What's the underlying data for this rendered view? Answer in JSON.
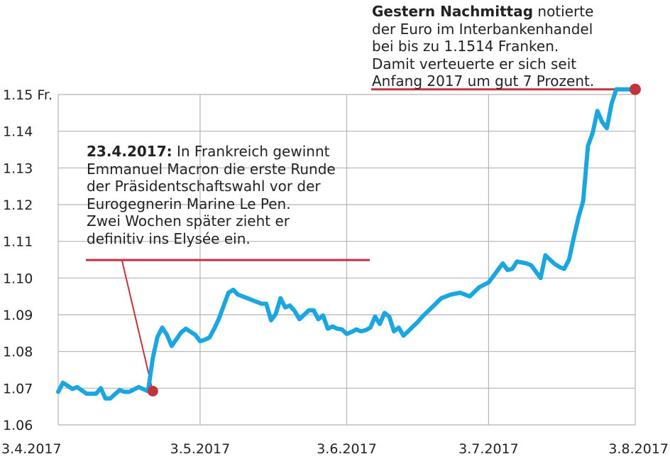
{
  "chart_data": {
    "type": "line",
    "x_ticks": [
      "3.4.2017",
      "3.5.2017",
      "3.6.2017",
      "3.7.2017",
      "3.8.2017"
    ],
    "y_ticks": [
      "1.06",
      "1.07",
      "1.08",
      "1.09",
      "1.10",
      "1.11",
      "1.12",
      "1.13",
      "1.14",
      "1.15 Fr."
    ],
    "ylim": [
      1.06,
      1.15
    ],
    "xlim": [
      "3.4.2017",
      "3.8.2017"
    ],
    "grid": true,
    "series_color": "#1ca6e0",
    "annotation_color": "#c4323b",
    "series": [
      {
        "x": [
          "3.4.2017",
          "4.4.2017",
          "6.4.2017",
          "7.4.2017",
          "9.4.2017",
          "11.4.2017",
          "12.4.2017",
          "13.4.2017",
          "14.4.2017",
          "16.4.2017",
          "17.4.2017",
          "18.4.2017",
          "20.4.2017",
          "22.4.2017",
          "23.4.2017",
          "24.4.2017",
          "25.4.2017",
          "26.4.2017",
          "27.4.2017",
          "29.4.2017",
          "30.4.2017",
          "2.5.2017",
          "3.5.2017",
          "4.5.2017",
          "5.5.2017",
          "6.5.2017",
          "7.5.2017",
          "8.5.2017",
          "9.5.2017",
          "10.5.2017",
          "11.5.2017",
          "13.5.2017",
          "14.5.2017",
          "16.5.2017",
          "17.5.2017",
          "18.5.2017",
          "19.5.2017",
          "20.5.2017",
          "21.5.2017",
          "22.5.2017",
          "23.5.2017",
          "24.5.2017",
          "26.5.2017",
          "27.5.2017",
          "28.5.2017",
          "29.5.2017",
          "30.5.2017",
          "31.5.2017",
          "1.6.2017",
          "2.6.2017",
          "3.6.2017",
          "4.6.2017",
          "5.6.2017",
          "6.6.2017",
          "7.6.2017",
          "8.6.2017",
          "9.6.2017",
          "10.6.2017",
          "11.6.2017",
          "12.6.2017",
          "13.6.2017",
          "14.6.2017",
          "15.6.2017",
          "16.6.2017",
          "17.6.2017",
          "18.6.2017",
          "19.6.2017",
          "21.6.2017",
          "23.6.2017",
          "25.6.2017",
          "27.6.2017",
          "29.6.2017",
          "1.7.2017",
          "3.7.2017",
          "4.7.2017",
          "6.7.2017",
          "7.7.2017",
          "8.7.2017",
          "9.7.2017",
          "11.7.2017",
          "12.7.2017",
          "14.7.2017",
          "15.7.2017",
          "16.7.2017",
          "17.7.2017",
          "18.7.2017",
          "19.7.2017",
          "20.7.2017",
          "21.7.2017",
          "22.7.2017",
          "23.7.2017",
          "24.7.2017",
          "25.7.2017",
          "26.7.2017",
          "27.7.2017",
          "28.7.2017",
          "29.7.2017",
          "30.7.2017",
          "31.7.2017",
          "1.8.2017",
          "3.8.2017"
        ],
        "y": [
          1.069,
          1.0715,
          1.0698,
          1.0703,
          1.0685,
          1.0685,
          1.07,
          1.0672,
          1.0672,
          1.0695,
          1.069,
          1.069,
          1.0703,
          1.0692,
          1.0782,
          1.084,
          1.0865,
          1.0845,
          1.0815,
          1.0852,
          1.0862,
          1.0845,
          1.0828,
          1.0832,
          1.0838,
          1.0862,
          1.089,
          1.0925,
          1.096,
          1.0968,
          1.0955,
          1.0945,
          1.094,
          1.093,
          1.093,
          1.0885,
          1.0902,
          1.0945,
          1.092,
          1.0925,
          1.091,
          1.0888,
          1.0912,
          1.0912,
          1.0888,
          1.0898,
          1.0862,
          1.0868,
          1.0862,
          1.086,
          1.0848,
          1.0853,
          1.086,
          1.0855,
          1.0858,
          1.0865,
          1.0895,
          1.0875,
          1.0905,
          1.0895,
          1.0855,
          1.0865,
          1.0843,
          1.0855,
          1.0868,
          1.088,
          1.0895,
          1.092,
          1.0945,
          1.0955,
          1.096,
          1.095,
          1.0975,
          1.0988,
          1.1005,
          1.104,
          1.1022,
          1.1025,
          1.1045,
          1.104,
          1.1035,
          1.1,
          1.1062,
          1.105,
          1.1038,
          1.103,
          1.1025,
          1.105,
          1.111,
          1.1165,
          1.121,
          1.136,
          1.1395,
          1.1455,
          1.1425,
          1.1408,
          1.1475,
          1.1514,
          1.1514,
          1.1514,
          1.1514
        ]
      }
    ],
    "annotations": [
      {
        "bold": "23.4.2017:",
        "lines": [
          "In Frankreich gewinnt",
          "Emmanuel Macron die erste Runde",
          "der Präsidentschaftswahl vor der",
          "Eurogegnerin Marine Le Pen.",
          "Zwei Wochen später zieht er",
          "definitiv ins Elysée ein."
        ],
        "point_x": "23.4.2017",
        "point_y": 1.0692
      },
      {
        "bold": "Gestern Nachmittag",
        "lines": [
          "notierte",
          "der Euro im Interbankenhandel",
          "bei bis zu 1.1514 Franken.",
          "Damit verteuerte er sich seit",
          "Anfang 2017 um gut 7 Prozent."
        ],
        "point_x": "3.8.2017",
        "point_y": 1.1514
      }
    ]
  }
}
